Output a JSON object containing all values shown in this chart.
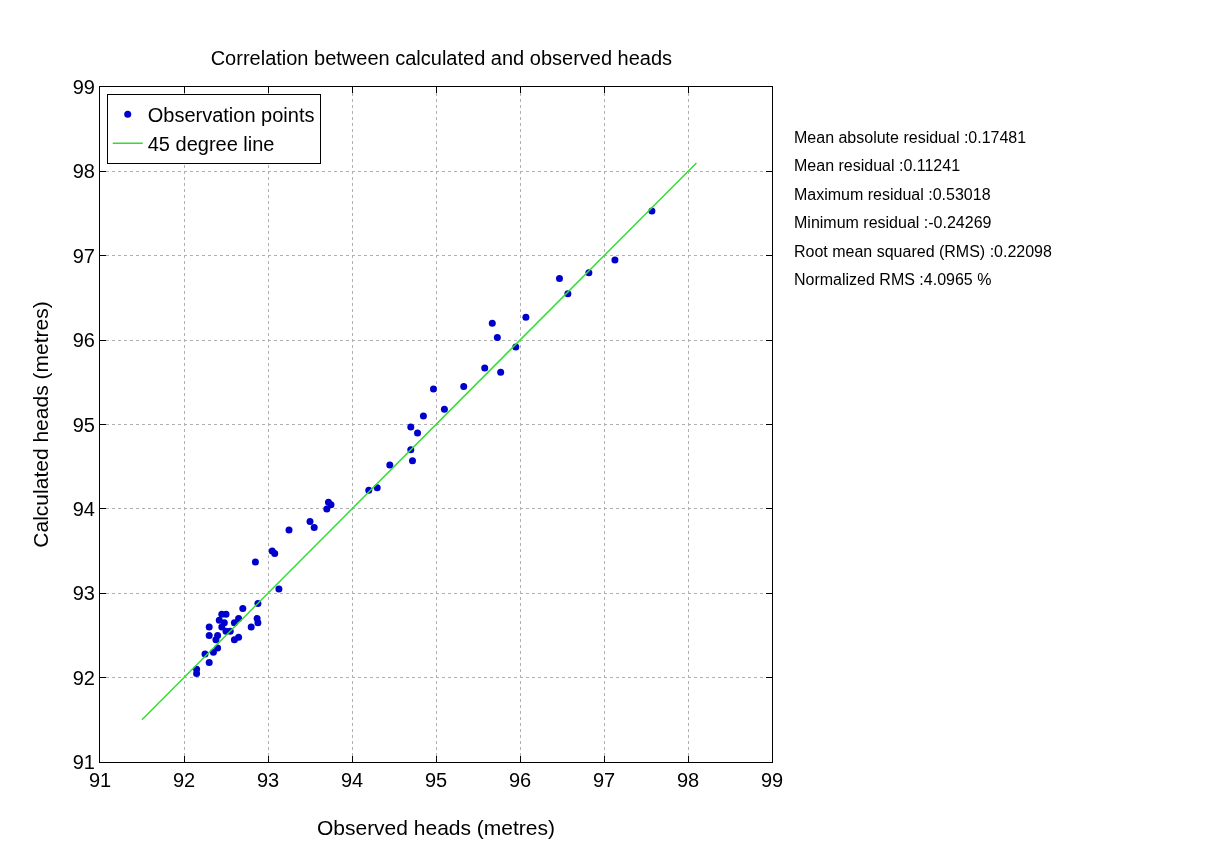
{
  "chart_data": {
    "type": "scatter",
    "title": "Correlation between calculated and observed heads",
    "xlabel": "Observed heads (metres)",
    "ylabel": "Calculated heads (metres)",
    "series": [
      {
        "name": "Observation points",
        "color": "#0000cc",
        "marker": "circle",
        "x": [
          92.15,
          92.15,
          92.25,
          92.3,
          92.3,
          92.3,
          92.35,
          92.4,
          92.38,
          92.4,
          92.42,
          92.45,
          92.5,
          92.48,
          92.45,
          92.55,
          92.6,
          92.5,
          92.6,
          92.65,
          92.65,
          92.7,
          92.8,
          92.88,
          92.88,
          92.87,
          92.85,
          93.05,
          93.08,
          93.13,
          93.25,
          93.5,
          93.55,
          93.7,
          93.72,
          93.75,
          94.2,
          94.3,
          94.45,
          94.7,
          94.7,
          94.72,
          94.78,
          94.85,
          94.97,
          95.1,
          95.33,
          95.58,
          95.67,
          95.73,
          95.77,
          95.95,
          96.07,
          96.47,
          96.57,
          96.82,
          97.13,
          97.57
        ],
        "values": [
          92.05,
          92.1,
          92.28,
          92.18,
          92.5,
          92.6,
          92.3,
          92.35,
          92.45,
          92.5,
          92.68,
          92.75,
          92.75,
          92.65,
          92.6,
          92.55,
          92.65,
          92.55,
          92.45,
          92.48,
          92.7,
          92.82,
          92.6,
          92.88,
          92.65,
          92.7,
          93.37,
          93.5,
          93.47,
          93.05,
          93.75,
          93.85,
          93.78,
          94.0,
          94.08,
          94.05,
          94.22,
          94.25,
          94.52,
          94.7,
          94.97,
          94.57,
          94.9,
          95.1,
          95.42,
          95.18,
          95.45,
          95.67,
          96.2,
          96.03,
          95.62,
          95.92,
          96.27,
          96.73,
          96.55,
          96.8,
          96.95,
          97.53
        ]
      },
      {
        "name": "45 degree line",
        "type": "line",
        "color": "#33dd33",
        "line_style": "solid",
        "x": [
          91.5,
          98.1
        ],
        "values": [
          91.5,
          98.1
        ]
      }
    ],
    "xlim": [
      91,
      99
    ],
    "xticks": [
      91,
      92,
      93,
      94,
      95,
      96,
      97,
      98,
      99
    ],
    "ylim": [
      91,
      99
    ],
    "yticks": [
      91,
      92,
      93,
      94,
      95,
      96,
      97,
      98,
      99
    ],
    "grid": true,
    "legend": "top left",
    "annotations": [
      "Mean absolute residual :0.17481",
      "Mean residual :0.11241",
      "Maximum residual :0.53018",
      "Minimum residual :-0.24269",
      "Root mean squared (RMS) :0.22098",
      "Normalized RMS :4.0965 %"
    ]
  }
}
